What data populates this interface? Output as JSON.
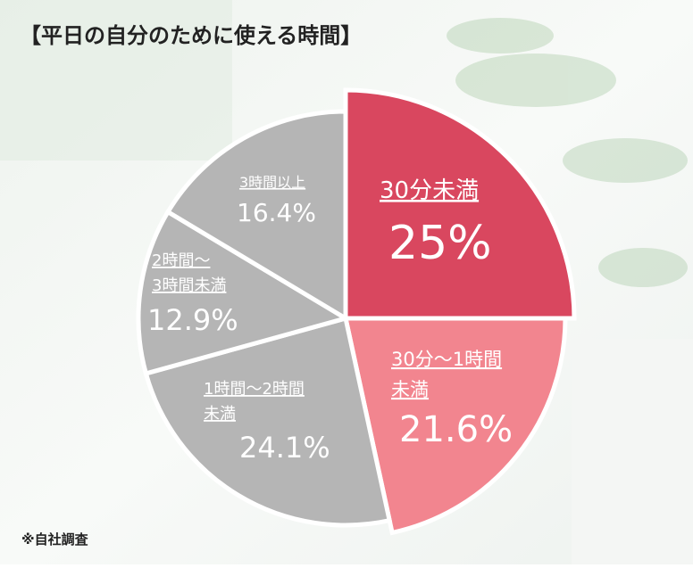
{
  "chart_data": {
    "type": "pie",
    "title": "【平日の自分のために使える時間】",
    "categories": [
      [
        "30分未満"
      ],
      [
        "30分〜1時間",
        "未満"
      ],
      [
        "1時間〜2時間",
        "未満"
      ],
      [
        "2時間〜",
        "3時間未満"
      ],
      [
        "3時間以上"
      ]
    ],
    "values": [
      25,
      21.6,
      24.1,
      12.9,
      16.4
    ],
    "value_labels": [
      "25%",
      "21.6%",
      "24.1%",
      "12.9%",
      "16.4%"
    ],
    "colors": [
      "#d9475f",
      "#f2858f",
      "#b5b5b5",
      "#b5b5b5",
      "#b5b5b5"
    ]
  },
  "footnote": "※自社調査"
}
